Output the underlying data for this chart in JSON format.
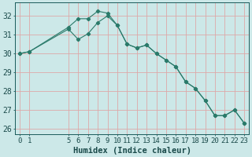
{
  "xlabel": "Humidex (Indice chaleur)",
  "bg_color": "#cce8e8",
  "grid_color": "#dda8a8",
  "line_color": "#2a7a6a",
  "line1_x": [
    0,
    1,
    5,
    6,
    7,
    8,
    9,
    10,
    11,
    12,
    13,
    14,
    15,
    16,
    17,
    18,
    19,
    20,
    21,
    22,
    23
  ],
  "line1_y": [
    30.0,
    30.1,
    31.4,
    31.85,
    31.85,
    32.25,
    32.15,
    31.5,
    30.5,
    30.3,
    30.45,
    30.0,
    29.65,
    29.3,
    28.5,
    28.15,
    27.5,
    26.7,
    26.7,
    27.0,
    26.3
  ],
  "line2_x": [
    0,
    1,
    5,
    6,
    7,
    8,
    9,
    10,
    11,
    12,
    13,
    14,
    15,
    16,
    17,
    18,
    19,
    20,
    21,
    22,
    23
  ],
  "line2_y": [
    30.0,
    30.1,
    31.3,
    30.75,
    31.05,
    31.65,
    32.0,
    31.5,
    30.5,
    30.3,
    30.45,
    30.0,
    29.65,
    29.3,
    28.5,
    28.15,
    27.5,
    26.7,
    26.7,
    27.0,
    26.3
  ],
  "ylim": [
    25.7,
    32.7
  ],
  "yticks": [
    26,
    27,
    28,
    29,
    30,
    31,
    32
  ],
  "xticks": [
    0,
    1,
    5,
    6,
    7,
    8,
    9,
    10,
    11,
    12,
    13,
    14,
    15,
    16,
    17,
    18,
    19,
    20,
    21,
    22,
    23
  ],
  "tick_fontsize": 6.5,
  "xlabel_fontsize": 7.5
}
